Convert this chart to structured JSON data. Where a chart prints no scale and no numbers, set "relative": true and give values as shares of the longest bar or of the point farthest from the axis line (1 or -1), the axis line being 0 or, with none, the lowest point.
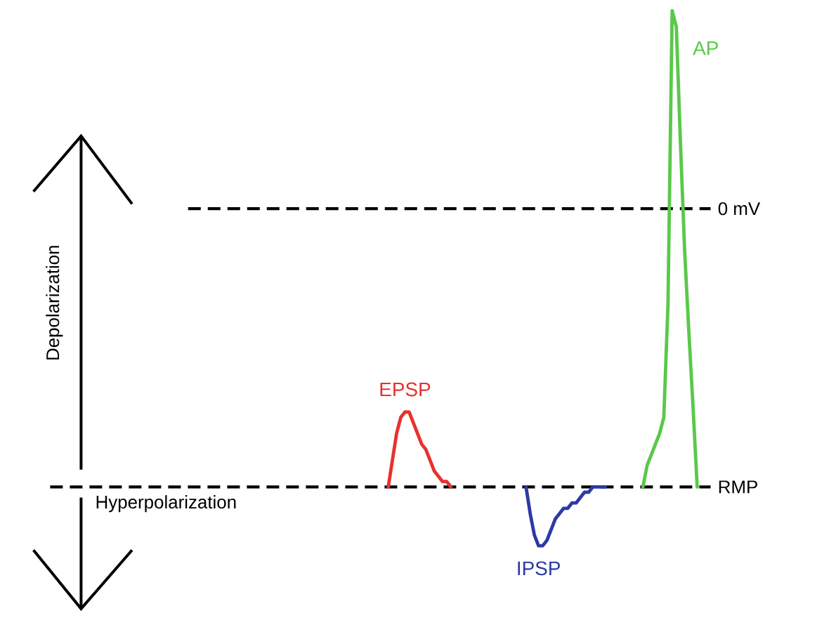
{
  "chart_data": {
    "type": "line",
    "relative": true,
    "marker": "none",
    "categories": [
      null,
      null,
      null,
      null,
      null,
      null,
      null,
      null,
      null,
      null,
      null,
      null,
      null,
      null,
      null,
      null,
      null,
      null,
      null,
      null,
      null,
      null,
      null,
      null,
      null,
      null,
      null,
      null,
      null,
      null,
      null,
      null,
      null,
      null,
      null,
      null,
      null,
      null,
      null,
      null,
      null,
      null,
      null,
      null,
      null,
      null,
      null,
      null,
      null,
      null,
      null,
      null,
      null,
      null,
      null,
      null,
      null,
      null,
      null,
      null,
      null,
      null,
      null,
      null,
      null,
      null,
      null,
      null,
      null,
      null,
      null,
      null,
      null,
      null,
      null,
      null
    ],
    "series": [
      {
        "name": "EPSP",
        "color": "#e8312f",
        "values": [
          0.11,
          0.16,
          0.21,
          0.24,
          0.25,
          0.25,
          0.23,
          0.21,
          0.19,
          0.18,
          0.16,
          0.14,
          0.13,
          0.12,
          0.12,
          0.11,
          null,
          null,
          null,
          null,
          null,
          null,
          null,
          null,
          null,
          null,
          null,
          null,
          null,
          null,
          null,
          null,
          null,
          null,
          null,
          null,
          null,
          null,
          null,
          null,
          null,
          null,
          null,
          null,
          null,
          null,
          null,
          null,
          null,
          null,
          null,
          null,
          null,
          null,
          null,
          null,
          null,
          null,
          null,
          null,
          null,
          null,
          null,
          null,
          null,
          null,
          null,
          null,
          null,
          null,
          null,
          null,
          null,
          null,
          null,
          null
        ]
      },
      {
        "name": "IPSP",
        "color": "#2b3aa6",
        "values": [
          null,
          null,
          null,
          null,
          null,
          null,
          null,
          null,
          null,
          null,
          null,
          null,
          null,
          null,
          null,
          null,
          null,
          null,
          null,
          null,
          null,
          null,
          null,
          null,
          null,
          null,
          null,
          null,
          null,
          null,
          null,
          null,
          null,
          0.11,
          0.06,
          0.02,
          0.0,
          0.0,
          0.01,
          0.03,
          0.05,
          0.06,
          0.07,
          0.07,
          0.08,
          0.08,
          0.09,
          0.1,
          0.1,
          0.11,
          0.11,
          0.11,
          0.11,
          null,
          null,
          null,
          null,
          null,
          null,
          null,
          null,
          null,
          null,
          null,
          null,
          null,
          null,
          null,
          null,
          null,
          null,
          null,
          null,
          null,
          null,
          null
        ]
      },
      {
        "name": "AP",
        "color": "#5ac84a",
        "values": [
          null,
          null,
          null,
          null,
          null,
          null,
          null,
          null,
          null,
          null,
          null,
          null,
          null,
          null,
          null,
          null,
          null,
          null,
          null,
          null,
          null,
          null,
          null,
          null,
          null,
          null,
          null,
          null,
          null,
          null,
          null,
          null,
          null,
          null,
          null,
          null,
          null,
          null,
          null,
          null,
          null,
          null,
          null,
          null,
          null,
          null,
          null,
          null,
          null,
          null,
          null,
          null,
          null,
          null,
          null,
          null,
          null,
          null,
          null,
          null,
          null,
          0.11,
          0.15,
          0.17,
          0.19,
          0.21,
          0.24,
          0.45,
          1.0,
          0.97,
          0.75,
          0.55,
          0.4,
          0.26,
          0.11,
          null
        ]
      }
    ],
    "ref_lines": [
      {
        "axis": "y",
        "value": 0.63,
        "label": "0 mV",
        "line_style": "dashed",
        "color": "#000000"
      },
      {
        "axis": "y",
        "value": 0.11,
        "label": "RMP",
        "line_style": "dashed",
        "color": "#000000"
      }
    ],
    "annotations": [
      "Depolarization",
      "Hyperpolarization"
    ]
  }
}
